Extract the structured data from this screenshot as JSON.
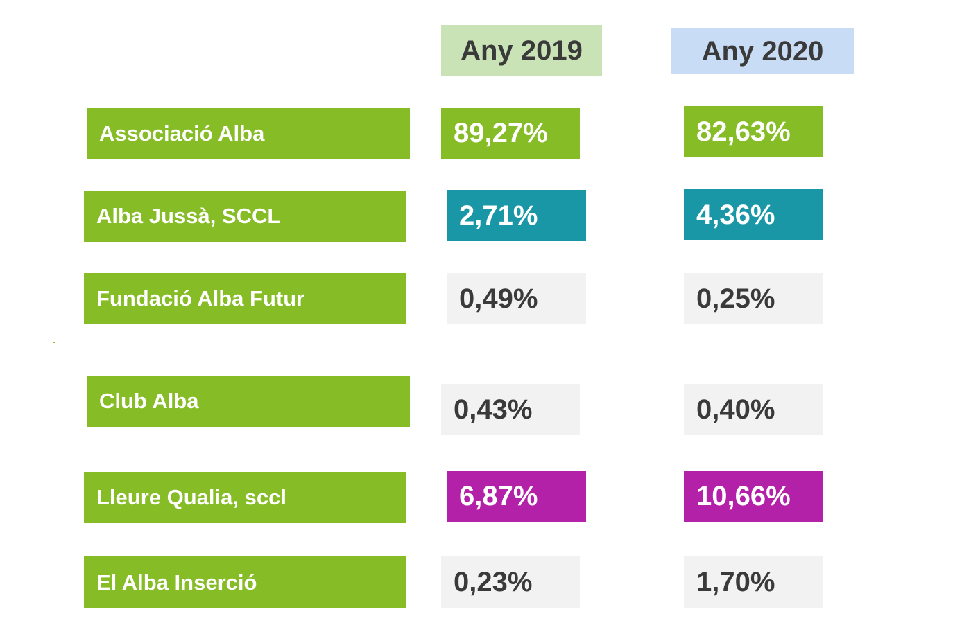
{
  "columns": [
    "Any 2019",
    "Any 2020"
  ],
  "colors": {
    "label_bg": "#86bc25",
    "header_2019_bg": "#c9e3b6",
    "header_2020_bg": "#c9dcf5",
    "green": "#86bc25",
    "teal": "#1a97a6",
    "magenta": "#b321a8",
    "gray": "#f2f2f2"
  },
  "rows": [
    {
      "name": "Associació Alba",
      "y2019": "89,27%",
      "y2020": "82,63%",
      "c2019": "green",
      "c2020": "green"
    },
    {
      "name": "Alba Jussà, SCCL",
      "y2019": "2,71%",
      "y2020": "4,36%",
      "c2019": "teal",
      "c2020": "teal"
    },
    {
      "name": "Fundació Alba Futur",
      "y2019": "0,49%",
      "y2020": "0,25%",
      "c2019": "gray",
      "c2020": "gray"
    },
    {
      "name": "Club Alba",
      "y2019": "0,43%",
      "y2020": "0,40%",
      "c2019": "gray",
      "c2020": "gray"
    },
    {
      "name": "Lleure Qualia, sccl",
      "y2019": "6,87%",
      "y2020": "10,66%",
      "c2019": "magenta",
      "c2020": "magenta"
    },
    {
      "name": "El Alba Inserció",
      "y2019": "0,23%",
      "y2020": "1,70%",
      "c2019": "gray",
      "c2020": "gray"
    }
  ]
}
